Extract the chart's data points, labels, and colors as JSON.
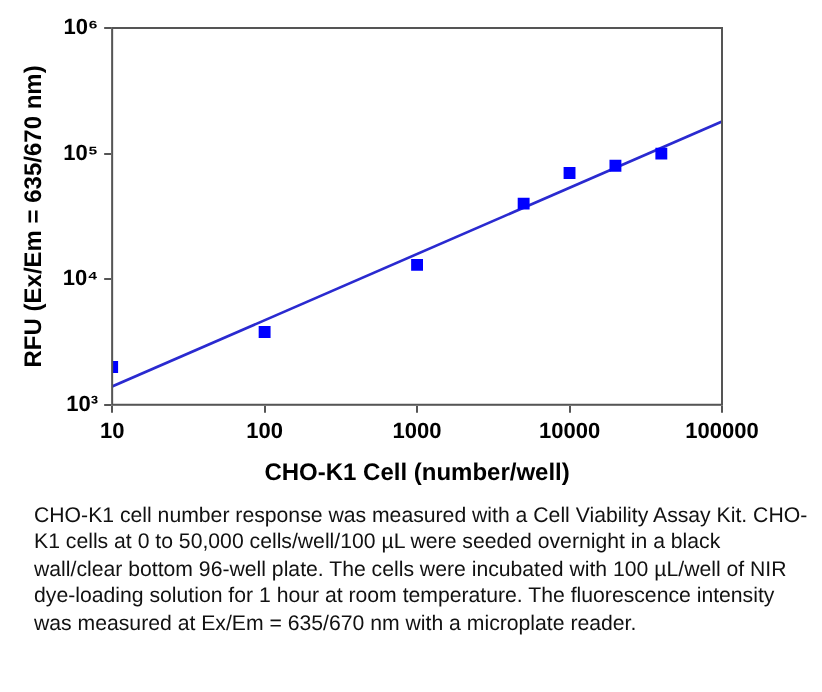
{
  "chart_data": {
    "type": "scatter",
    "xlabel": "CHO-K1 Cell (number/well)",
    "ylabel": "RFU (Ex/Em = 635/670 nm)",
    "x": [
      10,
      100,
      1000,
      5000,
      10000,
      20000,
      40000
    ],
    "series": [
      {
        "color": "#0000ff",
        "marker": "square",
        "values": [
          2000,
          3800,
          13000,
          40000,
          70000,
          80000,
          100000
        ]
      },
      {
        "type": "line",
        "color": "#2a2ad0",
        "marker": "none",
        "x": [
          10,
          100000
        ],
        "values": [
          1400,
          180000
        ]
      }
    ],
    "log": "xy",
    "xlim": [
      10,
      100000
    ],
    "xticks": [
      10,
      100,
      1000,
      10000,
      100000
    ],
    "ylim": [
      1000,
      1000000
    ],
    "yticks": [
      {
        "value": 1000,
        "label": "10³"
      },
      {
        "value": 10000,
        "label": "10⁴"
      },
      {
        "value": 100000,
        "label": "10⁵"
      },
      {
        "value": 1000000,
        "label": "10⁶"
      }
    ],
    "grid": false,
    "legend": false,
    "line_style": "solid",
    "annotations": [
      "CHO-K1 cell number response was measured with a Cell Viability Assay Kit. CHO-K1 cells at 0 to 50,000 cells/well/100 µL were seeded overnight in a black wall/clear bottom 96-well plate. The cells were incubated with 100 µL/well of NIR dye-loading solution for 1 hour at room temperature. The fluorescence intensity was measured at Ex/Em = 635/670 nm with a microplate reader."
    ]
  }
}
